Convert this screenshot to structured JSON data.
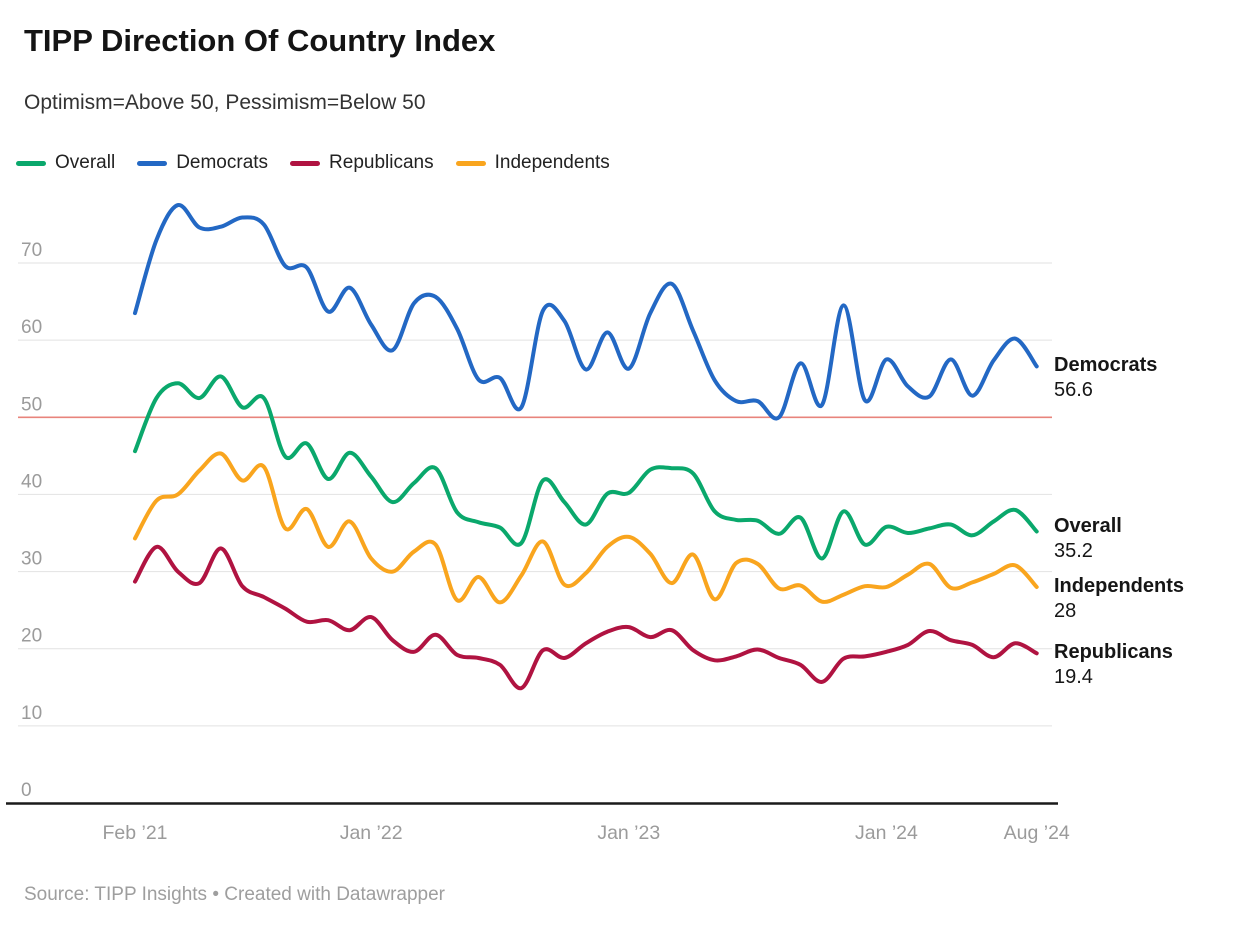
{
  "title": "TIPP Direction Of Country Index",
  "subtitle": "Optimism=Above 50, Pessimism=Below 50",
  "source": "Source: TIPP Insights • Created with Datawrapper",
  "legend": {
    "items": [
      {
        "label": "Overall",
        "color": "#0aa86c"
      },
      {
        "label": "Democrats",
        "color": "#2368c4"
      },
      {
        "label": "Republicans",
        "color": "#b01341"
      },
      {
        "label": "Independents",
        "color": "#f9a51e"
      }
    ]
  },
  "chart_data": {
    "type": "line",
    "title": "TIPP Direction Of Country Index",
    "subtitle": "Optimism=Above 50, Pessimism=Below 50",
    "x": [
      "Feb 2021",
      "Mar 2021",
      "Apr 2021",
      "May 2021",
      "Jun 2021",
      "Jul 2021",
      "Aug 2021",
      "Sep 2021",
      "Oct 2021",
      "Nov 2021",
      "Dec 2021",
      "Jan 2022",
      "Feb 2022",
      "Mar 2022",
      "Apr 2022",
      "May 2022",
      "Jun 2022",
      "Jul 2022",
      "Aug 2022",
      "Sep 2022",
      "Oct 2022",
      "Nov 2022",
      "Dec 2022",
      "Jan 2023",
      "Feb 2023",
      "Mar 2023",
      "Apr 2023",
      "May 2023",
      "Jun 2023",
      "Jul 2023",
      "Aug 2023",
      "Sep 2023",
      "Oct 2023",
      "Nov 2023",
      "Dec 2023",
      "Jan 2024",
      "Feb 2024",
      "Mar 2024",
      "Apr 2024",
      "May 2024",
      "Jun 2024",
      "Jul 2024",
      "Aug 2024"
    ],
    "x_ticks": [
      {
        "label": "Feb ’21",
        "month_index": 0
      },
      {
        "label": "Jan ’22",
        "month_index": 11
      },
      {
        "label": "Jan ’23",
        "month_index": 23
      },
      {
        "label": "Jan ’24",
        "month_index": 35
      },
      {
        "label": "Aug ’24",
        "month_index": 42
      }
    ],
    "ylim": [
      0,
      78
    ],
    "y_ticks": [
      0,
      10,
      20,
      30,
      40,
      50,
      60,
      70
    ],
    "grid": "horizontal",
    "legend_position": "top",
    "reference_line": {
      "value": 50,
      "color": "#e8847c",
      "meaning": "Optimism=Above 50, Pessimism=Below 50"
    },
    "series": [
      {
        "name": "Democrats",
        "color": "#2368c4",
        "end_label": "Democrats",
        "end_value": "56.6",
        "values": [
          63.5,
          73,
          77.5,
          74.6,
          74.7,
          75.9,
          75,
          69.6,
          69.4,
          63.7,
          66.8,
          62,
          58.7,
          64.8,
          65.6,
          61.5,
          54.9,
          55.1,
          51.3,
          63.8,
          62.5,
          56.2,
          61,
          56.3,
          63.5,
          67.3,
          61.2,
          54.8,
          52.1,
          52.1,
          50,
          57,
          51.6,
          64.5,
          52.2,
          57.5,
          54,
          52.7,
          57.5,
          52.8,
          57.4,
          60.2,
          56.6
        ]
      },
      {
        "name": "Overall",
        "color": "#0aa86c",
        "end_label": "Overall",
        "end_value": "35.2",
        "values": [
          45.6,
          52.5,
          54.4,
          52.5,
          55.3,
          51.3,
          52.5,
          44.9,
          46.6,
          42,
          45.4,
          42.3,
          39,
          41.5,
          43.4,
          37.7,
          36.4,
          35.7,
          33.7,
          41.8,
          39,
          36.1,
          40.1,
          40.2,
          43.2,
          43.4,
          42.7,
          37.8,
          36.7,
          36.6,
          34.9,
          37,
          31.7,
          37.8,
          33.5,
          35.8,
          35,
          35.6,
          36.1,
          34.7,
          36.5,
          38,
          35.2
        ]
      },
      {
        "name": "Independents",
        "color": "#f9a51e",
        "end_label": "Independents",
        "end_value": "28",
        "values": [
          34.3,
          39.2,
          40,
          43.1,
          45.3,
          41.8,
          43.6,
          35.6,
          38.1,
          33.2,
          36.5,
          31.7,
          30,
          32.6,
          33.5,
          26.3,
          29.3,
          26,
          29.5,
          33.9,
          28.3,
          29.8,
          33.2,
          34.5,
          32.3,
          28.5,
          32.2,
          26.4,
          31.1,
          31,
          27.8,
          28.2,
          26.1,
          27,
          28.1,
          28,
          29.6,
          31,
          27.9,
          28.6,
          29.7,
          30.8,
          28
        ]
      },
      {
        "name": "Republicans",
        "color": "#b01341",
        "end_label": "Republicans",
        "end_value": "19.4",
        "values": [
          28.7,
          33.2,
          30,
          28.5,
          33,
          28.1,
          26.7,
          25.2,
          23.5,
          23.7,
          22.4,
          24.1,
          21.1,
          19.6,
          21.8,
          19.2,
          18.8,
          17.9,
          14.9,
          19.8,
          18.8,
          20.7,
          22.2,
          22.8,
          21.5,
          22.4,
          19.8,
          18.5,
          19,
          19.9,
          18.8,
          17.9,
          15.7,
          18.7,
          19,
          19.6,
          20.5,
          22.3,
          21.1,
          20.5,
          18.9,
          20.7,
          19.4
        ]
      }
    ]
  }
}
